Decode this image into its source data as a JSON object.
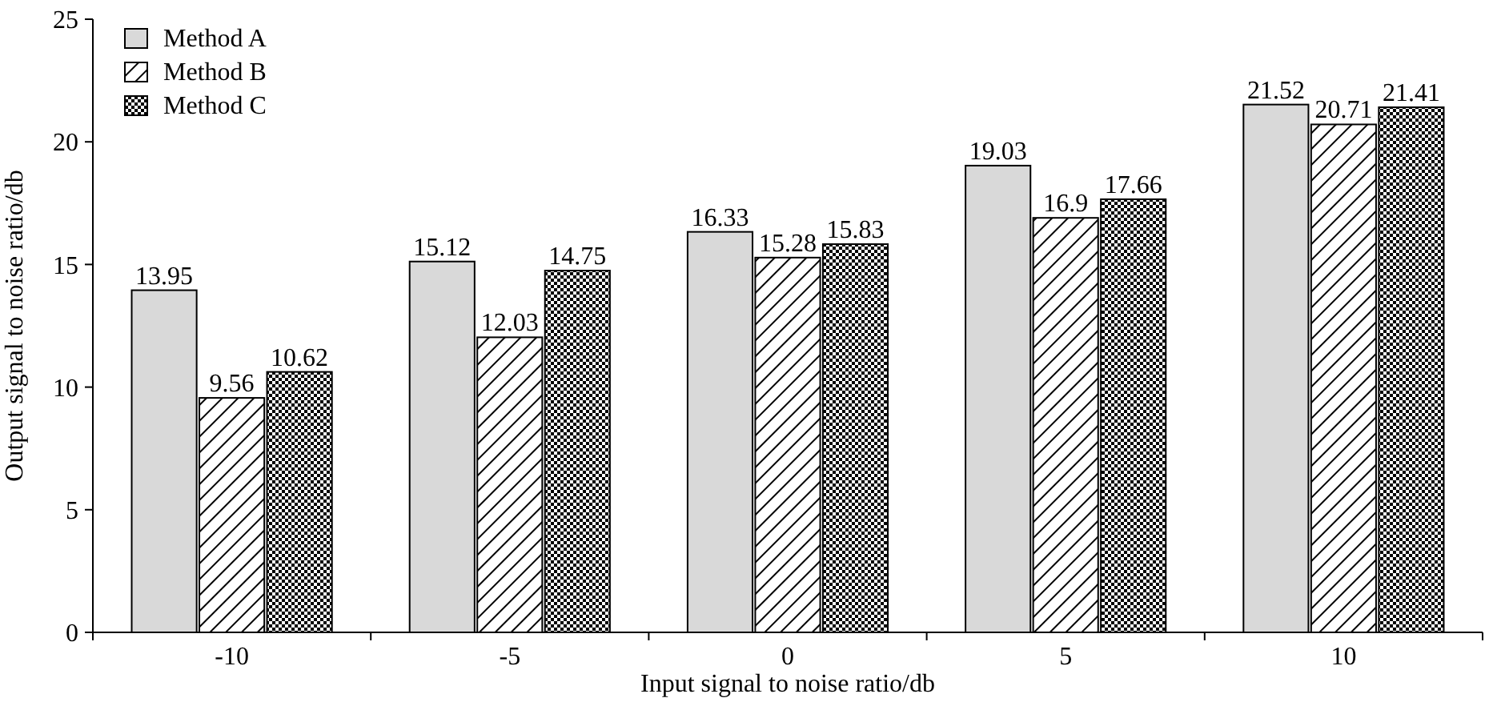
{
  "chart_data": {
    "type": "bar",
    "xlabel": "Input signal to noise ratio/db",
    "ylabel": "Output signal to noise ratio/db",
    "categories": [
      "-10",
      "-5",
      "0",
      "5",
      "10"
    ],
    "series": [
      {
        "name": "Method A",
        "color": "#d9d9d9",
        "values": [
          13.95,
          15.12,
          16.33,
          19.03,
          21.52
        ]
      },
      {
        "name": "Method B",
        "color": "#000000",
        "values": [
          9.56,
          12.03,
          15.28,
          16.9,
          20.71
        ]
      },
      {
        "name": "Method C",
        "color": "#000000",
        "values": [
          10.62,
          14.75,
          15.83,
          17.66,
          21.41
        ]
      }
    ],
    "ylim": [
      0,
      25
    ],
    "yticks": [
      0,
      5,
      10,
      15,
      20,
      25
    ],
    "data_labels": true,
    "legend": "top left",
    "grid": false
  }
}
